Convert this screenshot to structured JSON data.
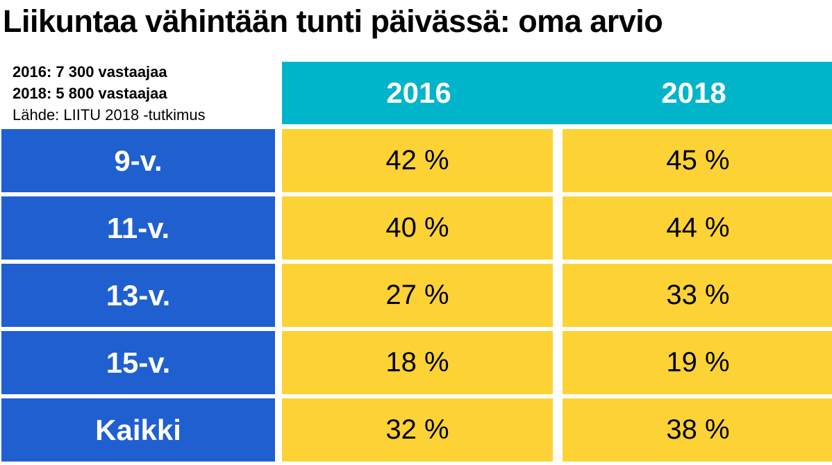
{
  "title": "Liikuntaa vähintään tunti päivässä: oma arvio",
  "info": {
    "respondents_2016": "2016: 7 300 vastaajaa",
    "respondents_2018": "2018: 5 800 vastaajaa",
    "source": "Lähde: LIITU 2018 -tutkimus"
  },
  "colors": {
    "header_bg": "#00b4c9",
    "row_label_bg": "#1f5fd0",
    "cell_bg": "#fdd235"
  },
  "chart_data": {
    "type": "table",
    "title": "Liikuntaa vähintään tunti päivässä: oma arvio",
    "columns": [
      "2016",
      "2018"
    ],
    "rows": [
      {
        "label": "9-v.",
        "values": [
          "42 %",
          "45 %"
        ]
      },
      {
        "label": "11-v.",
        "values": [
          "40 %",
          "44 %"
        ]
      },
      {
        "label": "13-v.",
        "values": [
          "27 %",
          "33 %"
        ]
      },
      {
        "label": "15-v.",
        "values": [
          "18 %",
          "19 %"
        ]
      },
      {
        "label": "Kaikki",
        "values": [
          "32 %",
          "38 %"
        ]
      }
    ]
  }
}
